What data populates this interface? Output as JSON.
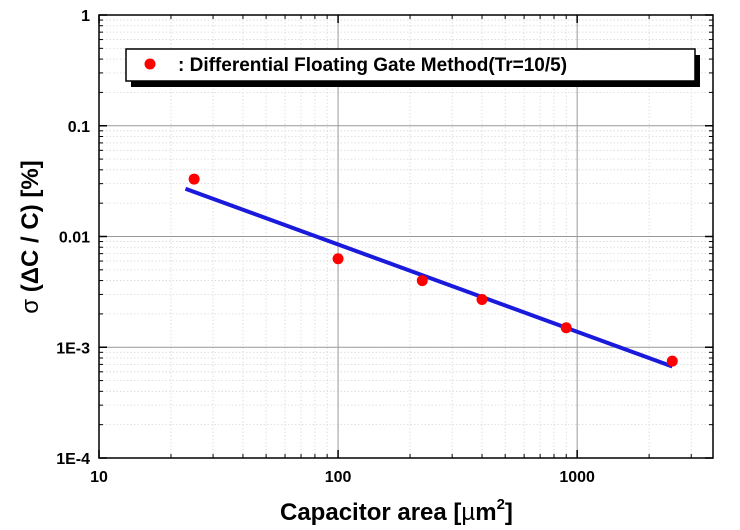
{
  "chart_data": {
    "type": "scatter",
    "x_scale": "log",
    "y_scale": "log",
    "xlim": [
      10,
      3700
    ],
    "ylim": [
      0.0001,
      1
    ],
    "grid": true,
    "x_ticks": [
      {
        "value": 10,
        "label": "10"
      },
      {
        "value": 100,
        "label": "100"
      },
      {
        "value": 1000,
        "label": "1000"
      }
    ],
    "y_ticks": [
      {
        "value": 1,
        "label": "1"
      },
      {
        "value": 0.1,
        "label": "0.1"
      },
      {
        "value": 0.01,
        "label": "0.01"
      },
      {
        "value": 0.001,
        "label": "1E-3"
      },
      {
        "value": 0.0001,
        "label": "1E-4"
      }
    ],
    "xlabel": {
      "main": "Capacitor area [",
      "mu": "µ",
      "unit": "m",
      "sup": "2",
      "close": "]"
    },
    "ylabel": {
      "sigma": "σ",
      "rest": " (ΔC / C) [%]"
    },
    "legend": {
      "position": "top",
      "label": ": Differential Floating Gate Method(Tr=10/5)"
    },
    "series": [
      {
        "name": ": Differential Floating Gate Method(Tr=10/5)",
        "marker": "circle",
        "color": "#ff0000",
        "x": [
          25,
          100,
          225,
          400,
          900,
          2500
        ],
        "y": [
          0.033,
          0.0063,
          0.004,
          0.0027,
          0.0015,
          0.00075
        ]
      }
    ],
    "fit_line": {
      "color": "#1a1adc",
      "x": [
        23,
        2500
      ],
      "y": [
        0.027,
        0.00067
      ]
    }
  }
}
